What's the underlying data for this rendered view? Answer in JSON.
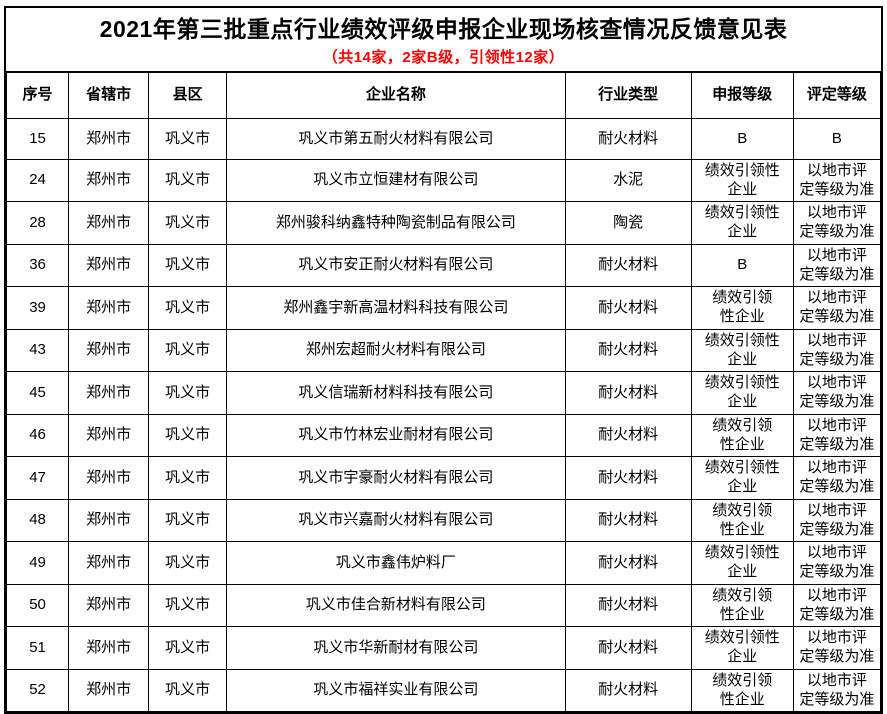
{
  "title": "2021年第三批重点行业绩效评级申报企业现场核查情况反馈意见表",
  "subtitle": "（共14家，2家B级，引领性12家）",
  "colors": {
    "subtitle_text": "#ff0000",
    "border": "#000000",
    "background": "#ffffff",
    "body_text": "#000000"
  },
  "table": {
    "headers": [
      "序号",
      "省辖市",
      "县区",
      "企业名称",
      "行业类型",
      "申报等级",
      "评定等级"
    ],
    "rows": [
      {
        "no": "15",
        "city": "郑州市",
        "county": "巩义市",
        "company": "巩义市第五耐火材料有限公司",
        "industry": "耐火材料",
        "declared": "B",
        "assessed": "B"
      },
      {
        "no": "24",
        "city": "郑州市",
        "county": "巩义市",
        "company": "巩义市立恒建材有限公司",
        "industry": "水泥",
        "declared": "绩效引领性\n企业",
        "assessed": "以地市评\n定等级为准"
      },
      {
        "no": "28",
        "city": "郑州市",
        "county": "巩义市",
        "company": "郑州骏科纳鑫特种陶瓷制品有限公司",
        "industry": "陶瓷",
        "declared": "绩效引领性\n企业",
        "assessed": "以地市评\n定等级为准"
      },
      {
        "no": "36",
        "city": "郑州市",
        "county": "巩义市",
        "company": "巩义市安正耐火材料有限公司",
        "industry": "耐火材料",
        "declared": "B",
        "assessed": "以地市评\n定等级为准"
      },
      {
        "no": "39",
        "city": "郑州市",
        "county": "巩义市",
        "company": "郑州鑫宇新高温材料科技有限公司",
        "industry": "耐火材料",
        "declared": "绩效引领\n性企业",
        "assessed": "以地市评\n定等级为准"
      },
      {
        "no": "43",
        "city": "郑州市",
        "county": "巩义市",
        "company": "郑州宏超耐火材料有限公司",
        "industry": "耐火材料",
        "declared": "绩效引领性\n企业",
        "assessed": "以地市评\n定等级为准"
      },
      {
        "no": "45",
        "city": "郑州市",
        "county": "巩义市",
        "company": "巩义信瑞新材料科技有限公司",
        "industry": "耐火材料",
        "declared": "绩效引领性\n企业",
        "assessed": "以地市评\n定等级为准"
      },
      {
        "no": "46",
        "city": "郑州市",
        "county": "巩义市",
        "company": "巩义市竹林宏业耐材有限公司",
        "industry": "耐火材料",
        "declared": "绩效引领\n性企业",
        "assessed": "以地市评\n定等级为准"
      },
      {
        "no": "47",
        "city": "郑州市",
        "county": "巩义市",
        "company": "巩义市宇豪耐火材料有限公司",
        "industry": "耐火材料",
        "declared": "绩效引领性\n企业",
        "assessed": "以地市评\n定等级为准"
      },
      {
        "no": "48",
        "city": "郑州市",
        "county": "巩义市",
        "company": "巩义市兴嘉耐火材料有限公司",
        "industry": "耐火材料",
        "declared": "绩效引领\n性企业",
        "assessed": "以地市评\n定等级为准"
      },
      {
        "no": "49",
        "city": "郑州市",
        "county": "巩义市",
        "company": "巩义市鑫伟炉料厂",
        "industry": "耐火材料",
        "declared": "绩效引领性\n企业",
        "assessed": "以地市评\n定等级为准"
      },
      {
        "no": "50",
        "city": "郑州市",
        "county": "巩义市",
        "company": "巩义市佳合新材料有限公司",
        "industry": "耐火材料",
        "declared": "绩效引领\n性企业",
        "assessed": "以地市评\n定等级为准"
      },
      {
        "no": "51",
        "city": "郑州市",
        "county": "巩义市",
        "company": "巩义市华新耐材有限公司",
        "industry": "耐火材料",
        "declared": "绩效引领性\n企业",
        "assessed": "以地市评\n定等级为准"
      },
      {
        "no": "52",
        "city": "郑州市",
        "county": "巩义市",
        "company": "巩义市福祥实业有限公司",
        "industry": "耐火材料",
        "declared": "绩效引领\n性企业",
        "assessed": "以地市评\n定等级为准"
      }
    ]
  }
}
